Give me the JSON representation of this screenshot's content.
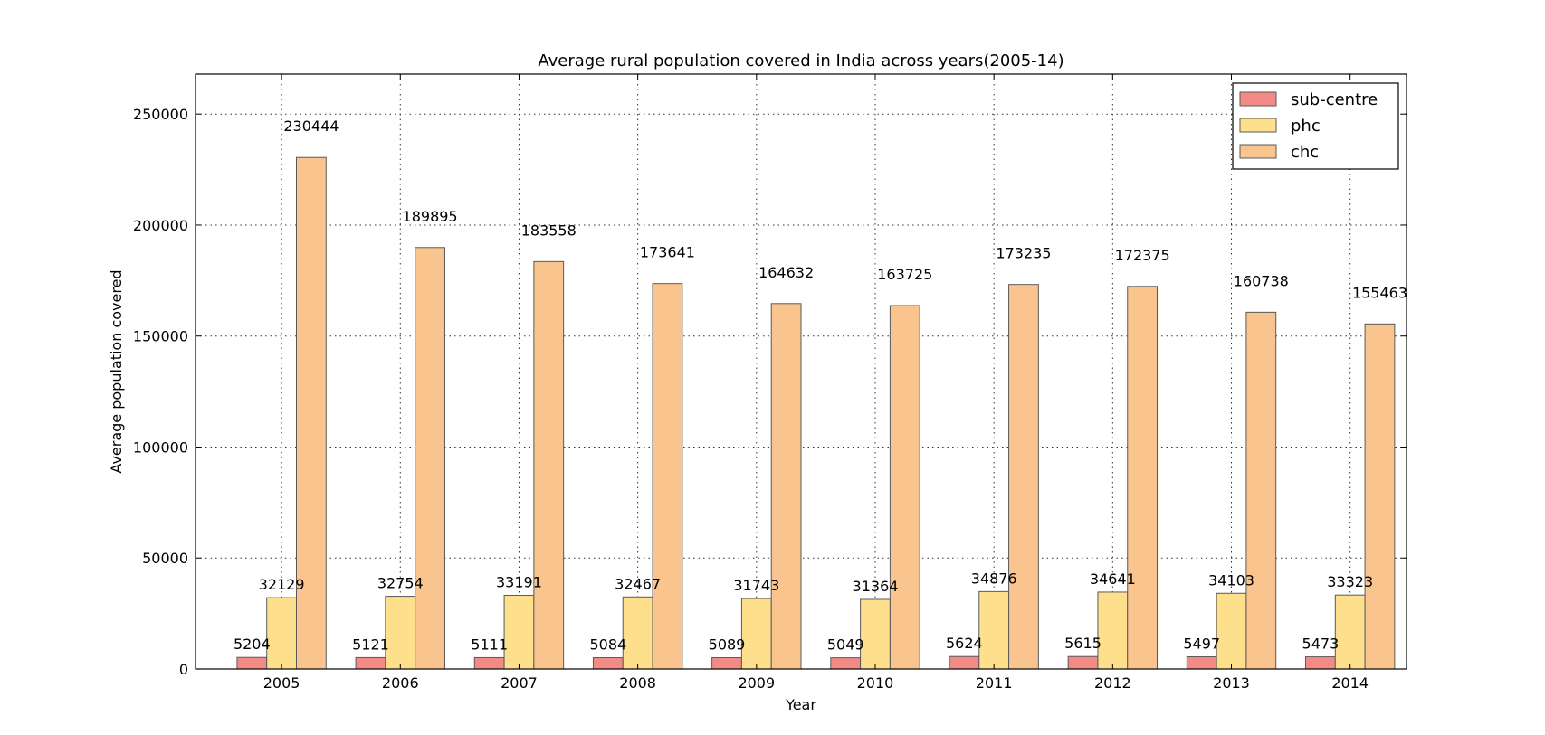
{
  "chart_data": {
    "type": "bar",
    "title": "Average rural population covered in India across years(2005-14)",
    "xlabel": "Year",
    "ylabel": "Average population covered",
    "categories": [
      "2005",
      "2006",
      "2007",
      "2008",
      "2009",
      "2010",
      "2011",
      "2012",
      "2013",
      "2014"
    ],
    "ylim": [
      0,
      268000
    ],
    "yticks": [
      0,
      50000,
      100000,
      150000,
      200000,
      250000
    ],
    "grid": true,
    "legend_position": "top-right",
    "series": [
      {
        "name": "sub-centre",
        "color": "#f28b86",
        "values": [
          5204,
          5121,
          5111,
          5084,
          5089,
          5049,
          5624,
          5615,
          5497,
          5473
        ]
      },
      {
        "name": "phc",
        "color": "#fddf8c",
        "values": [
          32129,
          32754,
          33191,
          32467,
          31743,
          31364,
          34876,
          34641,
          34103,
          33323
        ]
      },
      {
        "name": "chc",
        "color": "#f9c48d",
        "values": [
          230444,
          189895,
          183558,
          173641,
          164632,
          163725,
          173235,
          172375,
          160738,
          155463
        ]
      }
    ]
  }
}
